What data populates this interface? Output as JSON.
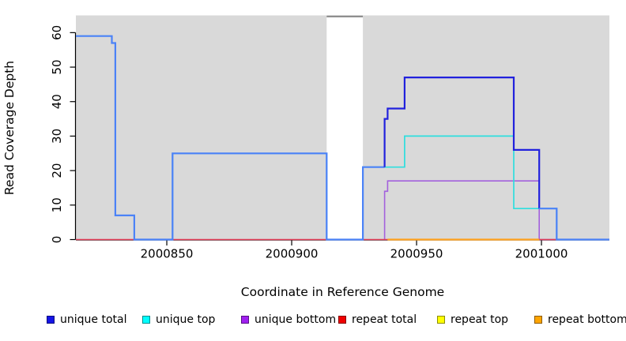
{
  "axes": {
    "x": {
      "title": "Coordinate in Reference Genome",
      "ticks": [
        2000850,
        2000900,
        2000950,
        2001000
      ],
      "range": [
        2000813.6,
        2001027.2
      ]
    },
    "y": {
      "title": "Read Coverage Depth",
      "ticks": [
        0,
        10,
        20,
        30,
        40,
        50,
        60
      ],
      "range": [
        0,
        65
      ]
    }
  },
  "chart_data": {
    "type": "line",
    "subtype": "step-coverage-plot",
    "plot_bg": "#d9d9d9",
    "grid": false,
    "gap_region": {
      "x_start": 2000914.0,
      "x_end": 2000928.5,
      "fill": "#ffffff",
      "cap_color": "#8f8f8f"
    },
    "draw_order": [
      "unique bottom",
      "repeat total",
      "repeat top",
      "repeat bottom",
      "unique top",
      "unique total"
    ],
    "series": [
      {
        "name": "unique total",
        "color": "#2121dd",
        "overlap_color": "#4b82f7",
        "overlap_with": "unique top",
        "line_width": 2.2,
        "points": [
          [
            2000813.6,
            59
          ],
          [
            2000828.0,
            59
          ],
          [
            2000828.0,
            57
          ],
          [
            2000829.4,
            57
          ],
          [
            2000829.4,
            7
          ],
          [
            2000837.0,
            7
          ],
          [
            2000837.0,
            0
          ],
          [
            2000852.3,
            0
          ],
          [
            2000852.3,
            25
          ],
          [
            2000914.0,
            25
          ],
          [
            2000914.0,
            0
          ],
          [
            2000928.5,
            0
          ],
          [
            2000928.5,
            21
          ],
          [
            2000937.2,
            21
          ],
          [
            2000937.2,
            35
          ],
          [
            2000938.4,
            35
          ],
          [
            2000938.4,
            38
          ],
          [
            2000945.2,
            38
          ],
          [
            2000945.2,
            47
          ],
          [
            2000988.9,
            47
          ],
          [
            2000988.9,
            26
          ],
          [
            2000999.1,
            26
          ],
          [
            2000999.1,
            9
          ],
          [
            2001006.1,
            9
          ],
          [
            2001006.1,
            0
          ],
          [
            2001027.2,
            0
          ]
        ]
      },
      {
        "name": "unique top",
        "color": "#2edede",
        "line_width": 1.7,
        "points": [
          [
            2000813.6,
            59
          ],
          [
            2000828.0,
            59
          ],
          [
            2000828.0,
            57
          ],
          [
            2000829.4,
            57
          ],
          [
            2000829.4,
            7
          ],
          [
            2000837.0,
            7
          ],
          [
            2000837.0,
            0
          ],
          [
            2000852.3,
            0
          ],
          [
            2000852.3,
            25
          ],
          [
            2000914.0,
            25
          ],
          [
            2000914.0,
            0
          ],
          [
            2000928.5,
            0
          ],
          [
            2000928.5,
            21
          ],
          [
            2000945.2,
            21
          ],
          [
            2000945.2,
            30
          ],
          [
            2000988.9,
            30
          ],
          [
            2000988.9,
            9
          ],
          [
            2001006.1,
            9
          ],
          [
            2001006.1,
            0
          ],
          [
            2001027.2,
            0
          ]
        ]
      },
      {
        "name": "unique bottom",
        "color": "#a361dd",
        "line_width": 1.6,
        "points": [
          [
            2000937.2,
            0
          ],
          [
            2000937.2,
            14
          ],
          [
            2000938.4,
            14
          ],
          [
            2000938.4,
            17
          ],
          [
            2000999.1,
            17
          ],
          [
            2000999.1,
            0
          ],
          [
            2001027.2,
            0
          ]
        ]
      },
      {
        "name": "repeat total",
        "color": "#e23b56",
        "line_width": 1.4,
        "points": [
          [
            2000813.6,
            0
          ],
          [
            2001027.2,
            0
          ]
        ]
      },
      {
        "name": "repeat top",
        "color": "#f5f500",
        "line_width": 1.2,
        "points": [
          [
            2000938.4,
            0
          ],
          [
            2000999.1,
            0
          ]
        ]
      },
      {
        "name": "repeat bottom",
        "color": "#ffa21f",
        "line_width": 2.2,
        "points": [
          [
            2000938.4,
            0
          ],
          [
            2000999.1,
            0
          ]
        ]
      }
    ]
  },
  "legend": [
    {
      "label": "unique total",
      "color": "#1414e6"
    },
    {
      "label": "unique top",
      "color": "#00ffff"
    },
    {
      "label": "unique bottom",
      "color": "#a020f0"
    },
    {
      "label": "repeat total",
      "color": "#f00000"
    },
    {
      "label": "repeat top",
      "color": "#ffff00"
    },
    {
      "label": "repeat bottom",
      "color": "#ffa500"
    }
  ]
}
